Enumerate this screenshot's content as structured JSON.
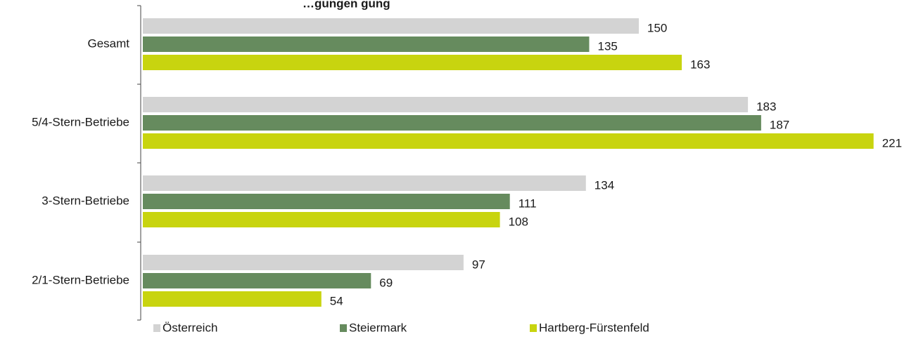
{
  "chart_data": {
    "type": "bar",
    "orientation": "horizontal",
    "title": "…gungen gung",
    "categories": [
      "Gesamt",
      "5/4-Stern-Betriebe",
      "3-Stern-Betriebe",
      "2/1-Stern-Betriebe"
    ],
    "series": [
      {
        "name": "Österreich",
        "color": "#d3d3d3",
        "values": [
          150,
          183,
          134,
          97
        ]
      },
      {
        "name": "Steiermark",
        "color": "#668b5e",
        "values": [
          135,
          187,
          111,
          69
        ]
      },
      {
        "name": "Hartberg-Fürstenfeld",
        "color": "#c8d40f",
        "values": [
          163,
          221,
          108,
          54
        ]
      }
    ],
    "xlim": [
      0,
      221
    ],
    "grid": false,
    "legend_position": "bottom"
  }
}
